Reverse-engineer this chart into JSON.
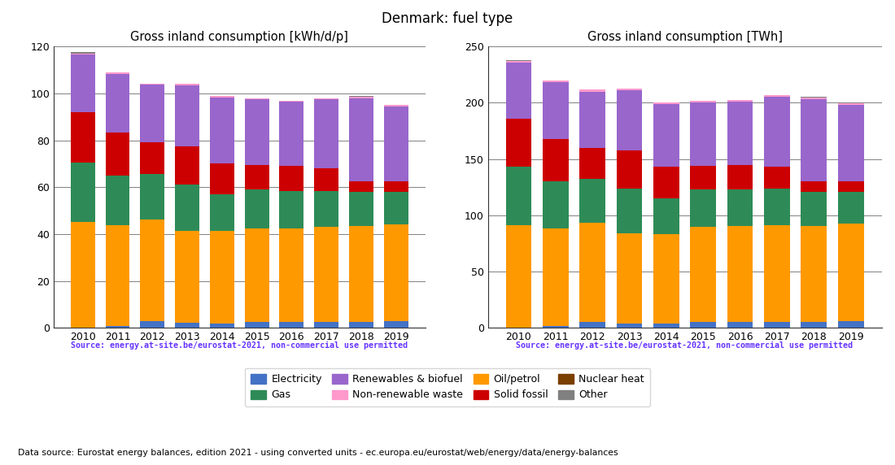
{
  "title": "Denmark: fuel type",
  "years": [
    2010,
    2011,
    2012,
    2013,
    2014,
    2015,
    2016,
    2017,
    2018,
    2019
  ],
  "left_title": "Gross inland consumption [kWh/d/p]",
  "right_title": "Gross inland consumption [TWh]",
  "source_text": "Source: energy.at-site.be/eurostat-2021, non-commercial use permitted",
  "bottom_text": "Data source: Eurostat energy balances, edition 2021 - using converted units - ec.europa.eu/eurostat/web/energy/data/energy-balances",
  "categories": [
    "Electricity",
    "Oil/petrol",
    "Gas",
    "Solid fossil",
    "Renewables & biofuel",
    "Non-renewable waste",
    "Nuclear heat",
    "Other"
  ],
  "colors": [
    "#4472c4",
    "#ff9900",
    "#2e8b57",
    "#cc0000",
    "#9966cc",
    "#ff99cc",
    "#7b3f00",
    "#808080"
  ],
  "kwhd_data": {
    "Electricity": [
      0.0,
      0.8,
      2.7,
      2.0,
      1.8,
      2.5,
      2.5,
      2.5,
      2.5,
      3.0
    ],
    "Oil/petrol": [
      45.0,
      43.0,
      43.5,
      39.5,
      39.5,
      40.0,
      40.0,
      40.5,
      41.0,
      41.0
    ],
    "Gas": [
      25.5,
      21.0,
      19.5,
      19.5,
      15.5,
      16.5,
      16.0,
      15.5,
      14.5,
      14.0
    ],
    "Solid fossil": [
      21.5,
      18.5,
      13.5,
      16.5,
      13.5,
      10.5,
      10.5,
      9.5,
      4.5,
      4.5
    ],
    "Renewables & biofuel": [
      24.5,
      25.0,
      24.5,
      26.0,
      28.0,
      28.0,
      27.5,
      29.5,
      35.5,
      32.0
    ],
    "Non-renewable waste": [
      0.5,
      0.5,
      0.5,
      0.5,
      0.5,
      0.5,
      0.5,
      0.5,
      0.5,
      0.5
    ],
    "Nuclear heat": [
      0.0,
      0.0,
      0.0,
      0.0,
      0.0,
      0.0,
      0.0,
      0.0,
      0.0,
      0.0
    ],
    "Other": [
      0.5,
      0.0,
      0.0,
      0.0,
      0.0,
      0.0,
      0.0,
      0.0,
      0.5,
      0.0
    ]
  },
  "twh_data": {
    "Electricity": [
      0.0,
      1.5,
      5.5,
      4.0,
      3.5,
      5.0,
      5.0,
      5.0,
      5.0,
      6.0
    ],
    "Oil/petrol": [
      91.0,
      87.0,
      88.0,
      80.0,
      80.0,
      85.0,
      85.5,
      86.5,
      85.5,
      86.5
    ],
    "Gas": [
      52.0,
      42.0,
      39.0,
      39.5,
      31.5,
      33.0,
      32.5,
      32.0,
      30.0,
      28.5
    ],
    "Solid fossil": [
      43.0,
      37.0,
      27.5,
      34.0,
      28.0,
      21.0,
      21.5,
      19.5,
      9.5,
      9.5
    ],
    "Renewables & biofuel": [
      49.5,
      50.5,
      50.0,
      53.5,
      56.0,
      56.0,
      56.5,
      62.5,
      73.0,
      67.5
    ],
    "Non-renewable waste": [
      1.5,
      1.5,
      1.5,
      1.5,
      1.5,
      1.5,
      1.5,
      1.5,
      1.5,
      1.5
    ],
    "Nuclear heat": [
      0.0,
      0.0,
      0.0,
      0.0,
      0.0,
      0.0,
      0.0,
      0.0,
      0.0,
      0.0
    ],
    "Other": [
      1.0,
      0.0,
      0.0,
      0.0,
      0.0,
      0.0,
      0.0,
      0.0,
      1.0,
      0.0
    ]
  },
  "left_ylim": [
    0,
    120
  ],
  "right_ylim": [
    0,
    250
  ],
  "left_yticks": [
    0,
    20,
    40,
    60,
    80,
    100,
    120
  ],
  "right_yticks": [
    0,
    50,
    100,
    150,
    200,
    250
  ],
  "source_color": "#6633ff",
  "bottom_text_color": "#000000"
}
